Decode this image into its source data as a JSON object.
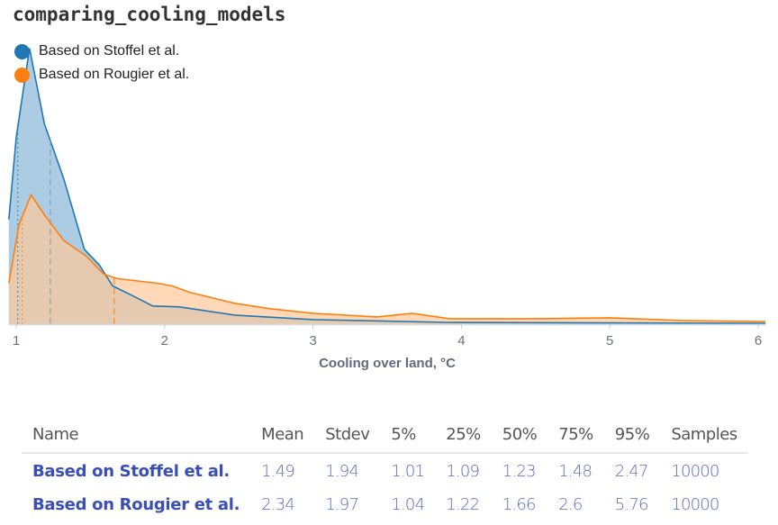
{
  "title": "comparing_cooling_models",
  "chart_data": {
    "type": "area",
    "xlabel": "Cooling over land, °C",
    "ylabel": "",
    "xlim": [
      0.95,
      6.05
    ],
    "ylim": [
      0,
      3.05
    ],
    "xticks": [
      1,
      2,
      3,
      4,
      5,
      6
    ],
    "grid": false,
    "legend_position": "top-left",
    "series": [
      {
        "name": "Based on Stoffel et al.",
        "color": "#1f77b4",
        "fill": "#a6c9e2",
        "x": [
          0.95,
          1.0,
          1.09,
          1.19,
          1.32,
          1.46,
          1.56,
          1.65,
          1.8,
          1.92,
          2.1,
          2.47,
          3.0,
          3.9,
          6.05
        ],
        "y": [
          1.15,
          2.05,
          3.03,
          2.2,
          1.6,
          0.82,
          0.65,
          0.42,
          0.3,
          0.2,
          0.19,
          0.1,
          0.05,
          0.02,
          0.01
        ],
        "markers": {
          "p5": 1.01,
          "p50": 1.23
        }
      },
      {
        "name": "Based on Rougier et al.",
        "color": "#ff7f0e",
        "fill": "#ffc999",
        "x": [
          0.95,
          1.02,
          1.1,
          1.19,
          1.32,
          1.47,
          1.59,
          1.68,
          1.95,
          2.05,
          2.17,
          2.47,
          2.71,
          3.0,
          3.43,
          3.67,
          3.92,
          4.53,
          5.0,
          5.5,
          6.05
        ],
        "y": [
          0.45,
          1.1,
          1.42,
          1.2,
          0.92,
          0.75,
          0.55,
          0.5,
          0.45,
          0.42,
          0.35,
          0.23,
          0.17,
          0.12,
          0.08,
          0.12,
          0.06,
          0.06,
          0.07,
          0.04,
          0.03
        ],
        "markers": {
          "p5": 1.04,
          "p50": 1.66
        }
      }
    ]
  },
  "table": {
    "headers": [
      "Name",
      "Mean",
      "Stdev",
      "5%",
      "25%",
      "50%",
      "75%",
      "95%",
      "Samples"
    ],
    "rows": [
      [
        "Based on Stoffel et al.",
        "1.49",
        "1.94",
        "1.01",
        "1.09",
        "1.23",
        "1.48",
        "2.47",
        "10000"
      ],
      [
        "Based on Rougier et al.",
        "2.34",
        "1.97",
        "1.04",
        "1.22",
        "1.66",
        "2.6",
        "5.76",
        "10000"
      ]
    ]
  }
}
